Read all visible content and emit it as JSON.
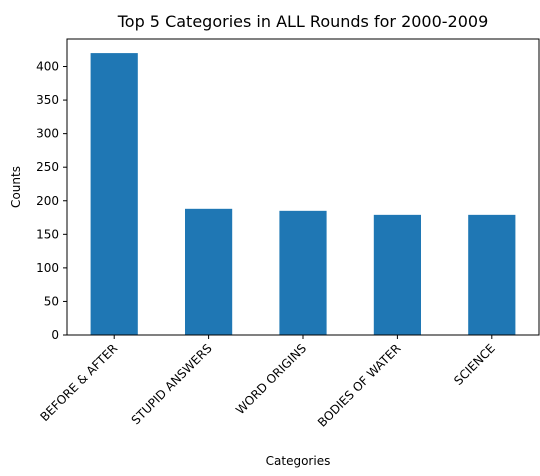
{
  "chart_data": {
    "type": "bar",
    "title": "Top 5 Categories in ALL Rounds for 2000-2009",
    "xlabel": "Categories",
    "ylabel": "Counts",
    "categories": [
      "BEFORE & AFTER",
      "STUPID ANSWERS",
      "WORD ORIGINS",
      "BODIES OF WATER",
      "SCIENCE"
    ],
    "values": [
      420,
      188,
      185,
      179,
      179
    ],
    "ylim": [
      0,
      441
    ],
    "yticks": [
      0,
      50,
      100,
      150,
      200,
      250,
      300,
      350,
      400
    ],
    "bar_color": "#1f77b4",
    "grid": false,
    "legend": "none"
  }
}
